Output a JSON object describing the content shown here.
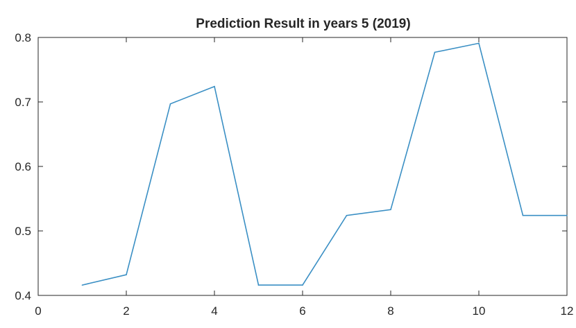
{
  "chart_data": {
    "type": "line",
    "title": "Prediction Result in years 5 (2019)",
    "xlabel": "",
    "ylabel": "",
    "xlim": [
      0,
      12
    ],
    "ylim": [
      0.4,
      0.8
    ],
    "xticks": [
      0,
      2,
      4,
      6,
      8,
      10,
      12
    ],
    "yticks": [
      0.4,
      0.5,
      0.6,
      0.7,
      0.8
    ],
    "xtick_labels": [
      "0",
      "2",
      "4",
      "6",
      "8",
      "10",
      "12"
    ],
    "ytick_labels": [
      "0.4",
      "0.5",
      "0.6",
      "0.7",
      "0.8"
    ],
    "grid": false,
    "box": true,
    "series": [
      {
        "color": "#3a8fc4",
        "x": [
          1,
          2,
          3,
          4,
          5,
          6,
          7,
          8,
          9,
          10,
          11,
          12
        ],
        "y": [
          0.416,
          0.432,
          0.697,
          0.724,
          0.416,
          0.416,
          0.524,
          0.533,
          0.777,
          0.791,
          0.524,
          0.524
        ]
      }
    ]
  }
}
